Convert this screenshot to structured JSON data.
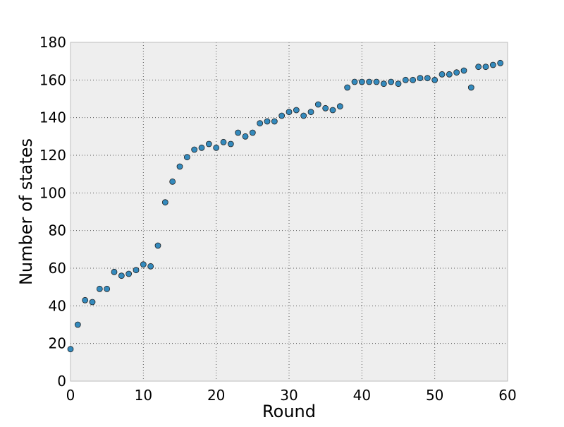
{
  "chart_data": {
    "type": "scatter",
    "title": "",
    "xlabel": "Round",
    "ylabel": "Number of states",
    "xlim": [
      0,
      60
    ],
    "ylim": [
      0,
      180
    ],
    "xticks": [
      0,
      10,
      20,
      30,
      40,
      50,
      60
    ],
    "yticks": [
      0,
      20,
      40,
      60,
      80,
      100,
      120,
      140,
      160,
      180
    ],
    "grid": true,
    "legend": "none",
    "colors": {
      "marker": "#348abd",
      "marker_edge": "#222222",
      "plot_background": "#eeeeee",
      "grid": "#555555",
      "frame": "#bcbcbc"
    },
    "series": [
      {
        "x": [
          0,
          1,
          2,
          3,
          4,
          5,
          6,
          7,
          8,
          9,
          10,
          11,
          12,
          13,
          14,
          15,
          16,
          17,
          18,
          19,
          20,
          21,
          22,
          23,
          24,
          25,
          26,
          27,
          28,
          29,
          30,
          31,
          32,
          33,
          34,
          35,
          36,
          37,
          38,
          39,
          40,
          41,
          42,
          43,
          44,
          45,
          46,
          47,
          48,
          49,
          50,
          51,
          52,
          53,
          54,
          55,
          56,
          57,
          58,
          59
        ],
        "y": [
          17,
          30,
          43,
          42,
          49,
          49,
          58,
          56,
          57,
          59,
          62,
          61,
          72,
          95,
          106,
          114,
          119,
          123,
          124,
          126,
          124,
          127,
          126,
          132,
          130,
          132,
          137,
          138,
          138,
          141,
          143,
          144,
          141,
          143,
          147,
          145,
          144,
          146,
          156,
          159,
          159,
          159,
          159,
          158,
          159,
          158,
          160,
          160,
          161,
          161,
          160,
          163,
          163,
          164,
          165,
          156,
          167,
          167,
          168,
          169
        ]
      }
    ]
  }
}
